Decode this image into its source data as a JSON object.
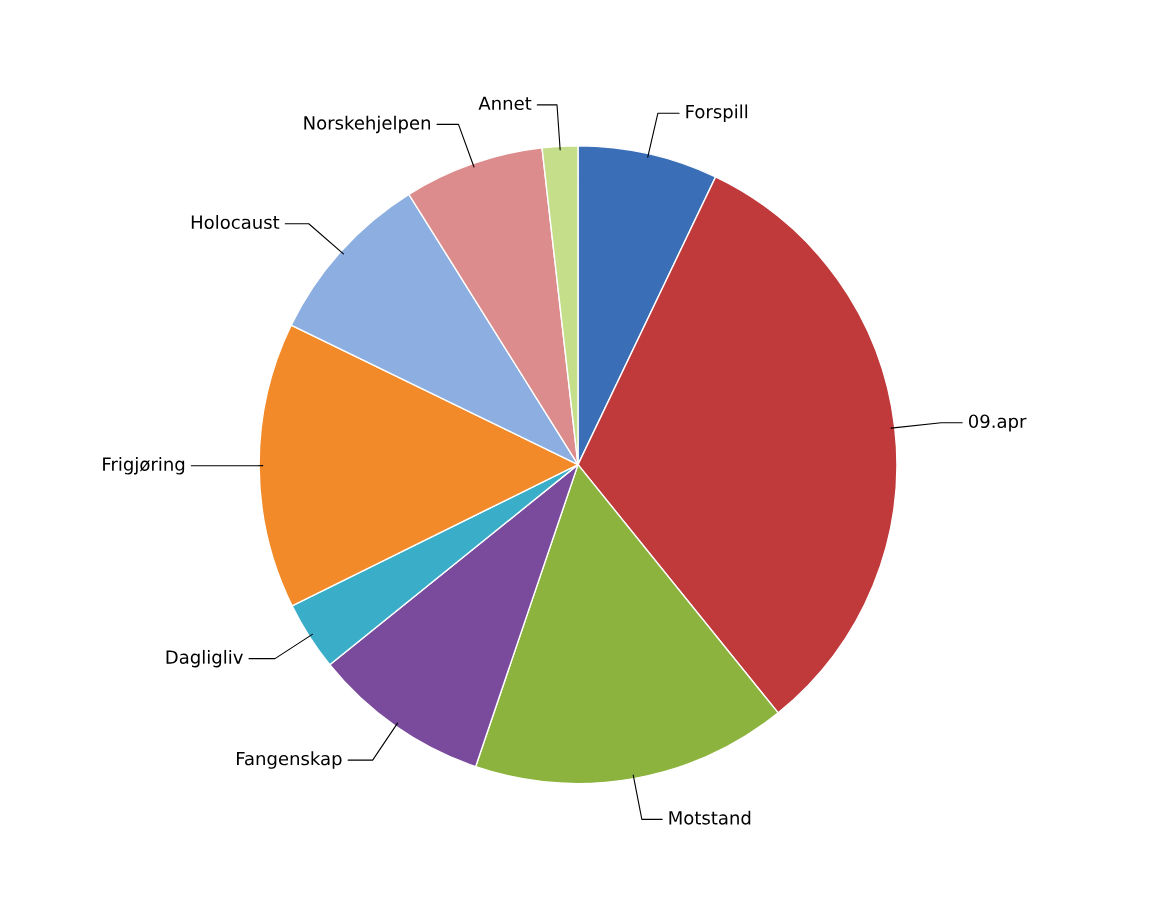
{
  "chart_data": {
    "type": "pie",
    "categories": [
      "Forspill",
      "09.apr",
      "Motstand",
      "Fangenskap",
      "Dagligliv",
      "Frigjøring",
      "Holocaust",
      "Norskehjelpen",
      "Annet"
    ],
    "values": [
      7.1,
      32.1,
      16.0,
      9.0,
      3.5,
      14.5,
      8.9,
      7.1,
      1.8
    ],
    "colors": [
      "#3a6fb8",
      "#c0393b",
      "#8db33f",
      "#7a4a9c",
      "#3aaec8",
      "#f28a2a",
      "#8caee0",
      "#dc8c8c",
      "#c4de8a"
    ],
    "legend": false
  }
}
